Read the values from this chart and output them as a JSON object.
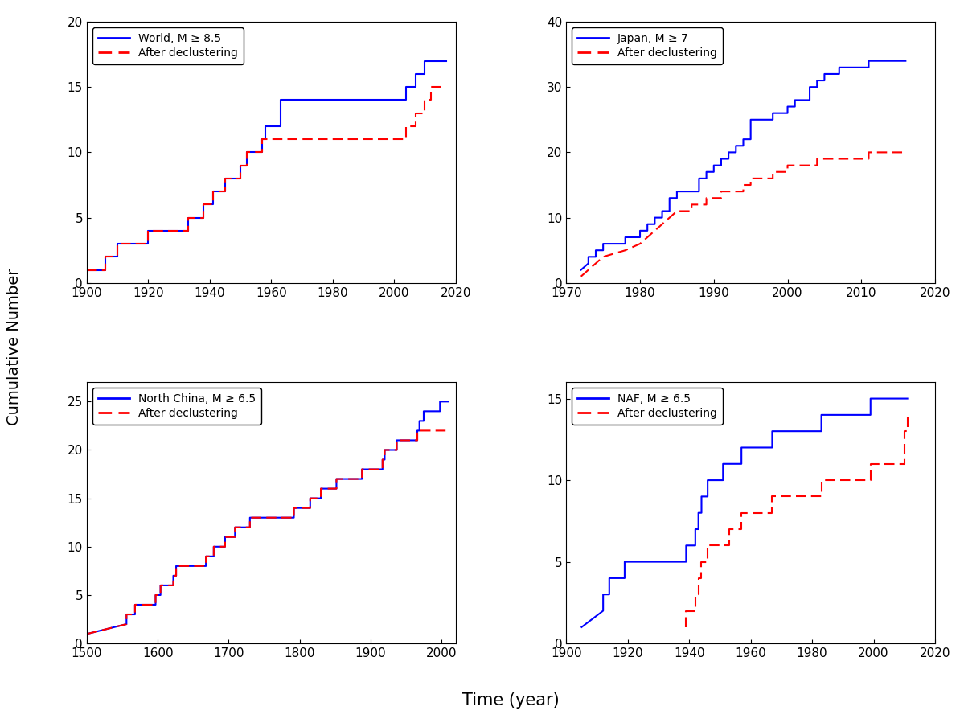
{
  "panels": [
    {
      "title": "World, M ≥ 8.5",
      "xlim": [
        1900,
        2020
      ],
      "ylim": [
        0,
        20
      ],
      "xticks": [
        1900,
        1920,
        1940,
        1960,
        1980,
        2000,
        2020
      ],
      "yticks": [
        0,
        5,
        10,
        15,
        20
      ],
      "blue_x": [
        1900,
        1906,
        1906,
        1910,
        1910,
        1920,
        1920,
        1933,
        1933,
        1938,
        1938,
        1941,
        1941,
        1945,
        1945,
        1950,
        1950,
        1952,
        1952,
        1957,
        1957,
        1958,
        1958,
        1960,
        1960,
        1963,
        1963,
        2004,
        2004,
        2007,
        2007,
        2010,
        2010,
        2011,
        2011,
        2012,
        2012,
        2015,
        2015,
        2017,
        2017
      ],
      "blue_y": [
        1,
        1,
        2,
        2,
        3,
        3,
        4,
        4,
        5,
        5,
        6,
        6,
        7,
        7,
        8,
        8,
        9,
        9,
        10,
        10,
        11,
        11,
        12,
        12,
        12,
        12,
        14,
        14,
        15,
        15,
        16,
        16,
        17,
        17,
        17,
        17,
        17,
        17,
        17,
        17,
        17
      ],
      "red_x": [
        1900,
        1906,
        1906,
        1910,
        1910,
        1920,
        1920,
        1933,
        1933,
        1938,
        1938,
        1941,
        1941,
        1945,
        1945,
        1950,
        1950,
        1952,
        1952,
        1957,
        1957,
        1960,
        1960,
        1963,
        1963,
        2004,
        2004,
        2007,
        2007,
        2010,
        2010,
        2011,
        2011,
        2012,
        2012,
        2015,
        2015
      ],
      "red_y": [
        1,
        1,
        2,
        2,
        3,
        3,
        4,
        4,
        5,
        5,
        6,
        6,
        7,
        7,
        8,
        8,
        9,
        9,
        10,
        10,
        11,
        11,
        11,
        11,
        11,
        11,
        12,
        12,
        13,
        13,
        14,
        14,
        14,
        14,
        15,
        15,
        15
      ]
    },
    {
      "title": "Japan, M ≥ 7",
      "xlim": [
        1970,
        2020
      ],
      "ylim": [
        0,
        40
      ],
      "xticks": [
        1970,
        1980,
        1990,
        2000,
        2010,
        2020
      ],
      "yticks": [
        0,
        10,
        20,
        30,
        40
      ],
      "blue_x": [
        1972,
        1972,
        1973,
        1973,
        1974,
        1974,
        1975,
        1975,
        1978,
        1978,
        1980,
        1980,
        1981,
        1981,
        1982,
        1982,
        1983,
        1983,
        1984,
        1984,
        1985,
        1985,
        1987,
        1987,
        1988,
        1988,
        1989,
        1989,
        1990,
        1990,
        1991,
        1991,
        1992,
        1992,
        1993,
        1993,
        1994,
        1994,
        1995,
        1995,
        1996,
        1996,
        1998,
        1998,
        1999,
        1999,
        2000,
        2000,
        2001,
        2001,
        2003,
        2003,
        2004,
        2004,
        2005,
        2005,
        2007,
        2007,
        2008,
        2008,
        2011,
        2011,
        2012,
        2012,
        2014,
        2014,
        2016,
        2016
      ],
      "blue_y": [
        2,
        2,
        3,
        4,
        4,
        5,
        5,
        6,
        6,
        7,
        7,
        8,
        8,
        9,
        9,
        10,
        10,
        11,
        11,
        13,
        13,
        14,
        14,
        14,
        14,
        16,
        16,
        17,
        17,
        18,
        18,
        19,
        19,
        20,
        20,
        21,
        21,
        22,
        22,
        25,
        25,
        25,
        25,
        26,
        26,
        26,
        26,
        27,
        27,
        28,
        28,
        30,
        30,
        31,
        31,
        32,
        32,
        33,
        33,
        33,
        33,
        34,
        34,
        34,
        34,
        34,
        34,
        34
      ],
      "red_x": [
        1972,
        1972,
        1973,
        1973,
        1974,
        1974,
        1975,
        1975,
        1978,
        1978,
        1980,
        1980,
        1981,
        1981,
        1982,
        1982,
        1983,
        1983,
        1984,
        1984,
        1985,
        1985,
        1987,
        1987,
        1988,
        1988,
        1989,
        1989,
        1990,
        1990,
        1991,
        1991,
        1992,
        1992,
        1993,
        1993,
        1994,
        1994,
        1995,
        1995,
        1998,
        1998,
        2000,
        2000,
        2003,
        2003,
        2004,
        2004,
        2007,
        2007,
        2008,
        2008,
        2011,
        2011,
        2012,
        2012,
        2014,
        2014,
        2016,
        2016
      ],
      "red_y": [
        1,
        1,
        2,
        2,
        3,
        3,
        4,
        4,
        5,
        5,
        6,
        6,
        7,
        7,
        8,
        8,
        9,
        9,
        10,
        10,
        11,
        11,
        11,
        12,
        12,
        12,
        12,
        13,
        13,
        13,
        13,
        14,
        14,
        14,
        14,
        14,
        14,
        15,
        15,
        16,
        16,
        17,
        17,
        18,
        18,
        18,
        18,
        19,
        19,
        19,
        19,
        19,
        19,
        20,
        20,
        20,
        20,
        20,
        20,
        20
      ]
    },
    {
      "title": "North China, M ≥ 6.5",
      "xlim": [
        1500,
        2020
      ],
      "ylim": [
        0,
        27
      ],
      "xticks": [
        1500,
        1600,
        1700,
        1800,
        1900,
        2000
      ],
      "yticks": [
        0,
        5,
        10,
        15,
        20,
        25
      ],
      "blue_x": [
        1501,
        1501,
        1556,
        1556,
        1568,
        1568,
        1597,
        1597,
        1604,
        1604,
        1622,
        1622,
        1626,
        1626,
        1668,
        1668,
        1679,
        1679,
        1695,
        1695,
        1709,
        1709,
        1718,
        1718,
        1730,
        1730,
        1765,
        1765,
        1786,
        1786,
        1792,
        1792,
        1812,
        1812,
        1815,
        1815,
        1820,
        1820,
        1830,
        1830,
        1850,
        1850,
        1852,
        1852,
        1880,
        1880,
        1888,
        1888,
        1902,
        1902,
        1917,
        1917,
        1920,
        1920,
        1927,
        1927,
        1937,
        1937,
        1966,
        1966,
        1969,
        1969,
        1975,
        1975,
        1976,
        1976,
        1998,
        1998,
        2001,
        2001,
        2003,
        2003,
        2010,
        2010
      ],
      "blue_y": [
        1,
        1,
        2,
        3,
        3,
        4,
        4,
        5,
        5,
        6,
        6,
        7,
        7,
        8,
        8,
        9,
        9,
        10,
        10,
        11,
        11,
        12,
        12,
        12,
        12,
        13,
        13,
        13,
        13,
        13,
        13,
        14,
        14,
        14,
        14,
        15,
        15,
        15,
        15,
        16,
        16,
        16,
        16,
        17,
        17,
        17,
        17,
        18,
        18,
        18,
        18,
        19,
        19,
        20,
        20,
        20,
        20,
        21,
        21,
        22,
        22,
        23,
        23,
        24,
        24,
        24,
        24,
        25,
        25,
        25,
        25,
        25,
        25,
        25
      ],
      "red_x": [
        1501,
        1501,
        1556,
        1556,
        1568,
        1568,
        1597,
        1597,
        1604,
        1604,
        1622,
        1622,
        1626,
        1626,
        1668,
        1668,
        1679,
        1679,
        1695,
        1695,
        1709,
        1709,
        1718,
        1718,
        1730,
        1730,
        1765,
        1765,
        1786,
        1786,
        1792,
        1792,
        1812,
        1812,
        1815,
        1815,
        1820,
        1820,
        1830,
        1830,
        1850,
        1850,
        1852,
        1852,
        1880,
        1880,
        1888,
        1888,
        1902,
        1902,
        1917,
        1917,
        1920,
        1920,
        1927,
        1927,
        1937,
        1937,
        1966,
        1966,
        1969,
        1969,
        1975,
        1975,
        1976,
        1976,
        1998,
        1998,
        2001,
        2001,
        2003,
        2003,
        2010,
        2010
      ],
      "red_y": [
        1,
        1,
        2,
        3,
        3,
        4,
        4,
        5,
        5,
        6,
        6,
        7,
        7,
        8,
        8,
        9,
        9,
        10,
        10,
        11,
        11,
        12,
        12,
        12,
        12,
        13,
        13,
        13,
        13,
        13,
        13,
        14,
        14,
        14,
        14,
        15,
        15,
        15,
        15,
        16,
        16,
        16,
        16,
        17,
        17,
        17,
        17,
        18,
        18,
        18,
        18,
        19,
        19,
        20,
        20,
        20,
        20,
        21,
        21,
        22,
        22,
        22,
        22,
        22,
        22,
        22,
        22,
        22,
        22,
        22,
        22,
        22,
        22,
        22
      ]
    },
    {
      "title": "NAF, M ≥ 6.5",
      "xlim": [
        1900,
        2020
      ],
      "ylim": [
        0,
        16
      ],
      "xticks": [
        1900,
        1920,
        1940,
        1960,
        1980,
        2000,
        2020
      ],
      "yticks": [
        0,
        5,
        10,
        15
      ],
      "blue_x": [
        1905,
        1905,
        1912,
        1912,
        1914,
        1914,
        1919,
        1919,
        1939,
        1939,
        1942,
        1942,
        1943,
        1943,
        1944,
        1944,
        1946,
        1946,
        1949,
        1949,
        1951,
        1951,
        1953,
        1953,
        1957,
        1957,
        1966,
        1966,
        1967,
        1967,
        1976,
        1976,
        1983,
        1983,
        1992,
        1992,
        1999,
        1999,
        2000,
        2000,
        2010,
        2010,
        2011,
        2011
      ],
      "blue_y": [
        1,
        1,
        2,
        3,
        3,
        4,
        4,
        5,
        5,
        6,
        6,
        7,
        7,
        8,
        8,
        9,
        9,
        10,
        10,
        10,
        10,
        11,
        11,
        11,
        11,
        12,
        12,
        12,
        12,
        13,
        13,
        13,
        13,
        14,
        14,
        14,
        14,
        15,
        15,
        15,
        15,
        15,
        15,
        15
      ],
      "red_x": [
        1939,
        1939,
        1942,
        1942,
        1943,
        1943,
        1944,
        1944,
        1946,
        1946,
        1949,
        1949,
        1953,
        1953,
        1957,
        1957,
        1966,
        1966,
        1967,
        1967,
        1976,
        1976,
        1983,
        1983,
        1992,
        1992,
        1999,
        1999,
        2000,
        2000,
        2010,
        2010,
        2011,
        2011
      ],
      "red_y": [
        1,
        2,
        2,
        3,
        3,
        4,
        4,
        5,
        5,
        6,
        6,
        6,
        6,
        7,
        7,
        8,
        8,
        8,
        8,
        9,
        9,
        9,
        9,
        10,
        10,
        10,
        10,
        11,
        11,
        11,
        11,
        13,
        13,
        14
      ]
    }
  ],
  "ylabel": "Cumulative Number",
  "xlabel": "Time (year)",
  "panel_titles": [
    "World, M ≥ 8.5",
    "Japan, M ≥ 7",
    "North China, M ≥ 6.5",
    "NAF, M ≥ 6.5"
  ],
  "legend_red": "After declustering",
  "blue_color": "#0000FF",
  "red_color": "#FF0000",
  "bg_color": "#FFFFFF",
  "linewidth": 1.5
}
